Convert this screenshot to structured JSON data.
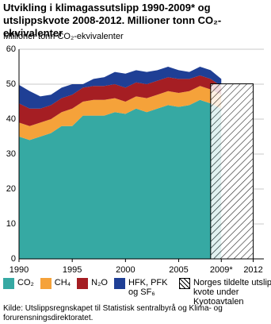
{
  "chart_data": {
    "type": "stacked-area",
    "title": "Utvikling i klimagassutslipp 1990-2009* og utslipps­kvote 2008-2012. Millioner tonn CO₂-ekvivalenter",
    "y_label": "Millioner tonn CO₂-ekvivalenter",
    "x": [
      1990,
      1991,
      1992,
      1993,
      1994,
      1995,
      1996,
      1997,
      1998,
      1999,
      2000,
      2001,
      2002,
      2003,
      2004,
      2005,
      2006,
      2007,
      2008,
      2009
    ],
    "series": [
      {
        "name": "CO₂",
        "color": "#36a9a3",
        "values": [
          35,
          34,
          35,
          36,
          38,
          38,
          41,
          41,
          41,
          42,
          41.5,
          43,
          42,
          43,
          44,
          43.5,
          44,
          45.5,
          44.5,
          43
        ]
      },
      {
        "name": "CH₄",
        "color": "#f5a23a",
        "values": [
          4,
          4,
          4,
          4,
          4,
          5,
          4,
          4.5,
          4.5,
          4,
          3.5,
          3.5,
          4,
          4,
          4,
          4,
          4,
          4,
          4,
          4
        ]
      },
      {
        "name": "N₂O",
        "color": "#a51e23",
        "values": [
          5.5,
          5,
          4,
          4,
          4,
          4,
          4,
          4,
          4,
          4,
          4,
          4,
          4,
          4,
          4,
          4,
          3.5,
          3,
          3,
          2.5
        ]
      },
      {
        "name": "HFK, PFK og SF₆",
        "color": "#1f3f95",
        "values": [
          5.3,
          5,
          3.5,
          3,
          3,
          3,
          1,
          2,
          2.5,
          3.5,
          4,
          3.5,
          3.5,
          3,
          3,
          2.5,
          2,
          2.5,
          2.5,
          2
        ]
      }
    ],
    "quota": {
      "name": "Norges tildelte utslipps­kvote under Kyotoavtalen",
      "value": 50.1,
      "x": [
        2008,
        2012
      ]
    },
    "xlim": [
      1990,
      2013
    ],
    "xticks": [
      1990,
      1995,
      2000,
      2005,
      {
        "value": 2009,
        "label": "2009*"
      },
      2012
    ],
    "ylim": [
      0,
      60
    ],
    "yticks": [
      0,
      10,
      20,
      30,
      40,
      50,
      60
    ],
    "grid": true,
    "source": "Kilde: Utslippsregnskapet til Statistisk sentralbyrå og Klima- og forurensnings­direktoratet."
  }
}
